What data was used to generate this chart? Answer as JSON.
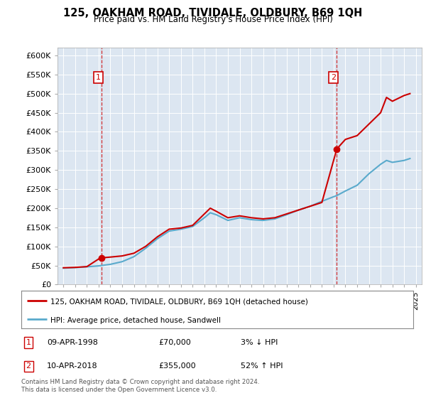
{
  "title": "125, OAKHAM ROAD, TIVIDALE, OLDBURY, B69 1QH",
  "subtitle": "Price paid vs. HM Land Registry's House Price Index (HPI)",
  "property_label": "125, OAKHAM ROAD, TIVIDALE, OLDBURY, B69 1QH (detached house)",
  "hpi_label": "HPI: Average price, detached house, Sandwell",
  "footnote": "Contains HM Land Registry data © Crown copyright and database right 2024.\nThis data is licensed under the Open Government Licence v3.0.",
  "sale1": {
    "date": "09-APR-1998",
    "price": 70000,
    "hpi_diff": "3% ↓ HPI",
    "year_x": 1998.27
  },
  "sale2": {
    "date": "10-APR-2018",
    "price": 355000,
    "hpi_diff": "52% ↑ HPI",
    "year_x": 2018.27
  },
  "ylim": [
    0,
    620000
  ],
  "yticks": [
    0,
    50000,
    100000,
    150000,
    200000,
    250000,
    300000,
    350000,
    400000,
    450000,
    500000,
    550000,
    600000
  ],
  "xlim_start": 1994.5,
  "xlim_end": 2025.5,
  "background_color": "#dce6f1",
  "red_color": "#cc0000",
  "blue_color": "#5aaacc",
  "property_hpi_line": [
    [
      1995,
      44000
    ],
    [
      1996,
      45000
    ],
    [
      1997,
      47000
    ],
    [
      1998.0,
      67000
    ],
    [
      1998.27,
      70000
    ],
    [
      1999,
      72000
    ],
    [
      2000,
      75000
    ],
    [
      2001,
      82000
    ],
    [
      2002,
      100000
    ],
    [
      2003,
      125000
    ],
    [
      2004,
      145000
    ],
    [
      2005,
      148000
    ],
    [
      2006,
      155000
    ],
    [
      2007,
      185000
    ],
    [
      2007.5,
      200000
    ],
    [
      2008,
      192000
    ],
    [
      2009,
      175000
    ],
    [
      2010,
      180000
    ],
    [
      2011,
      175000
    ],
    [
      2012,
      172000
    ],
    [
      2013,
      175000
    ],
    [
      2014,
      185000
    ],
    [
      2015,
      195000
    ],
    [
      2016,
      205000
    ],
    [
      2017,
      215000
    ],
    [
      2018.27,
      355000
    ],
    [
      2019,
      380000
    ],
    [
      2020,
      390000
    ],
    [
      2021,
      420000
    ],
    [
      2022,
      450000
    ],
    [
      2022.5,
      490000
    ],
    [
      2023,
      480000
    ],
    [
      2024,
      495000
    ],
    [
      2024.5,
      500000
    ]
  ],
  "hpi_line": [
    [
      1995,
      43000
    ],
    [
      1996,
      44500
    ],
    [
      1997,
      46500
    ],
    [
      1998,
      49000
    ],
    [
      1999,
      53000
    ],
    [
      2000,
      60000
    ],
    [
      2001,
      73000
    ],
    [
      2002,
      95000
    ],
    [
      2003,
      120000
    ],
    [
      2004,
      140000
    ],
    [
      2005,
      145000
    ],
    [
      2006,
      152000
    ],
    [
      2007,
      175000
    ],
    [
      2007.5,
      188000
    ],
    [
      2008,
      183000
    ],
    [
      2009,
      168000
    ],
    [
      2010,
      175000
    ],
    [
      2011,
      170000
    ],
    [
      2012,
      168000
    ],
    [
      2013,
      172000
    ],
    [
      2014,
      183000
    ],
    [
      2015,
      195000
    ],
    [
      2016,
      205000
    ],
    [
      2017,
      218000
    ],
    [
      2018,
      230000
    ],
    [
      2018.27,
      233000
    ],
    [
      2019,
      245000
    ],
    [
      2020,
      260000
    ],
    [
      2021,
      290000
    ],
    [
      2022,
      315000
    ],
    [
      2022.5,
      325000
    ],
    [
      2023,
      320000
    ],
    [
      2024,
      325000
    ],
    [
      2024.5,
      330000
    ]
  ]
}
